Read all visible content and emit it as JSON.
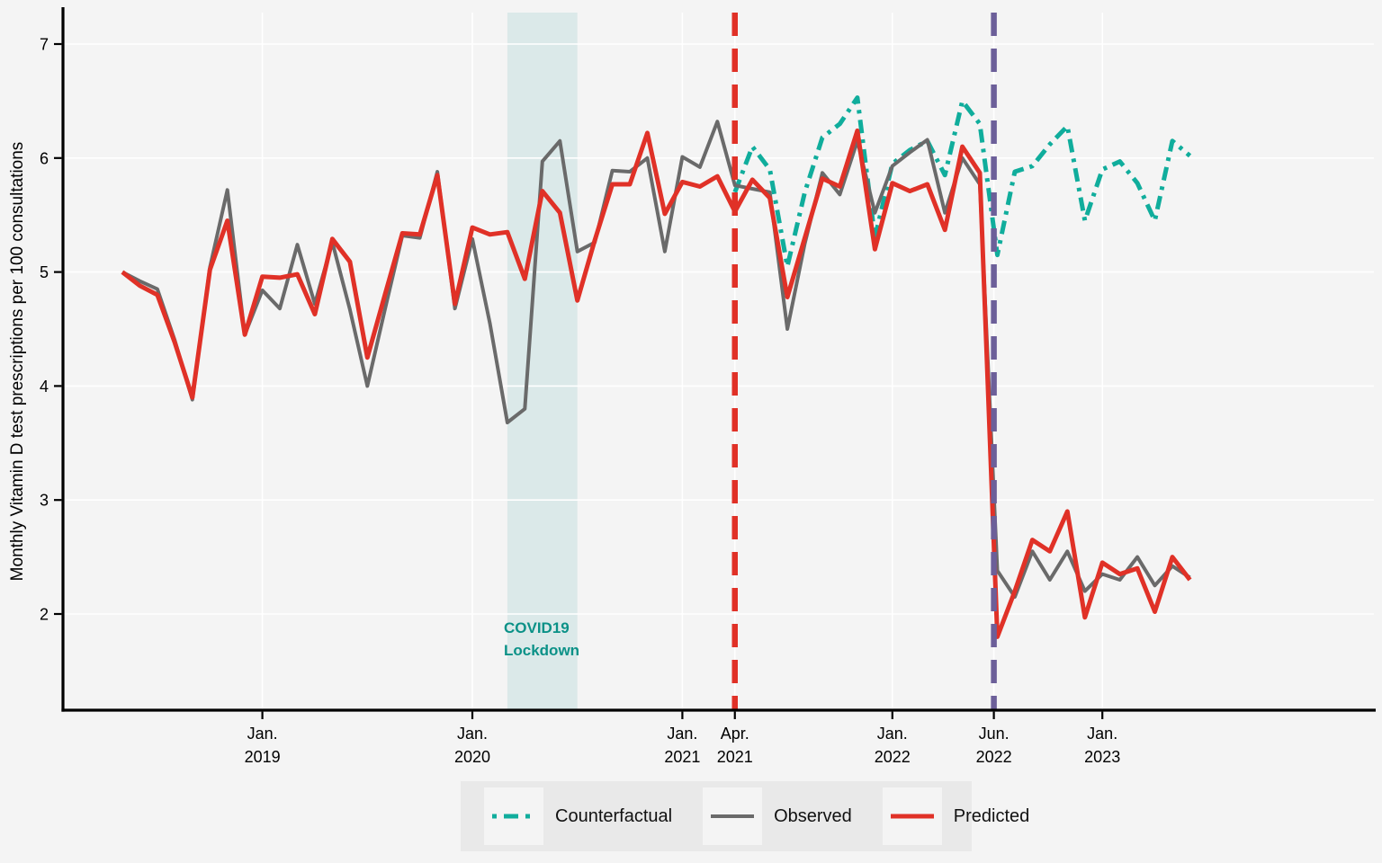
{
  "figure": {
    "background": "#f4f4f4",
    "plot_background": "#f4f4f4",
    "grid_color": "#ffffff",
    "axis_color": "#000000"
  },
  "annotation": {
    "line1": "COVID19",
    "line2": "Lockdown",
    "color": "#0a9187"
  },
  "legend": {
    "items": [
      {
        "label": "Counterfactual",
        "color": "#10ad9c",
        "style": "dash-dot",
        "width": 5
      },
      {
        "label": "Observed",
        "color": "#6a6a6a",
        "style": "solid",
        "width": 4
      },
      {
        "label": "Predicted",
        "color": "#e03127",
        "style": "solid",
        "width": 5
      }
    ]
  },
  "chart_data": {
    "type": "line",
    "title": "",
    "xlabel": "",
    "ylabel": "Monthly Vitamin D test prescriptions per 100 consultations",
    "ylim": [
      1.15,
      7.3
    ],
    "y_ticks": [
      2,
      3,
      4,
      5,
      6,
      7
    ],
    "grid": true,
    "legend_position": "bottom-center",
    "x": [
      "May 2018",
      "Jun 2018",
      "Jul 2018",
      "Aug 2018",
      "Sep 2018",
      "Oct 2018",
      "Nov 2018",
      "Dec 2018",
      "Jan 2019",
      "Feb 2019",
      "Mar 2019",
      "Apr 2019",
      "May 2019",
      "Jun 2019",
      "Jul 2019",
      "Aug 2019",
      "Sep 2019",
      "Oct 2019",
      "Nov 2019",
      "Dec 2019",
      "Jan 2020",
      "Feb 2020",
      "Mar 2020",
      "Apr 2020",
      "May 2020",
      "Jun 2020",
      "Jul 2020",
      "Aug 2020",
      "Sep 2020",
      "Oct 2020",
      "Nov 2020",
      "Dec 2020",
      "Jan 2021",
      "Feb 2021",
      "Mar 2021",
      "Apr 2021",
      "May 2021",
      "Jun 2021",
      "Jul 2021",
      "Aug 2021",
      "Sep 2021",
      "Oct 2021",
      "Nov 2021",
      "Dec 2021",
      "Jan 2022",
      "Feb 2022",
      "Mar 2022",
      "Apr 2022",
      "May 2022",
      "Jun 2022",
      "Jul 2022",
      "Aug 2022",
      "Sep 2022",
      "Oct 2022",
      "Nov 2022",
      "Dec 2022",
      "Jan 2023",
      "Feb 2023",
      "Mar 2023",
      "Apr 2023",
      "May 2023",
      "Jun 2023"
    ],
    "x_ticks": [
      {
        "index": 8,
        "line1": "Jan.",
        "line2": "2019"
      },
      {
        "index": 20,
        "line1": "Jan.",
        "line2": "2020"
      },
      {
        "index": 32,
        "line1": "Jan.",
        "line2": "2021"
      },
      {
        "index": 35,
        "line1": "Apr.",
        "line2": "2021"
      },
      {
        "index": 44,
        "line1": "Jan.",
        "line2": "2022"
      },
      {
        "index": 49.8,
        "line1": "Jun.",
        "line2": "2022"
      },
      {
        "index": 56,
        "line1": "Jan.",
        "line2": "2023"
      }
    ],
    "band": {
      "from_index": 22,
      "to_index": 26,
      "fill": "#dbe9e9",
      "label": "COVID19 Lockdown"
    },
    "vlines": [
      {
        "index": 35,
        "color": "#e03127"
      },
      {
        "index": 49.8,
        "color": "#6c5f99"
      }
    ],
    "series": [
      {
        "name": "Counterfactual",
        "color": "#10ad9c",
        "style": "dash-dot",
        "width": 5,
        "values": [
          null,
          null,
          null,
          null,
          null,
          null,
          null,
          null,
          null,
          null,
          null,
          null,
          null,
          null,
          null,
          null,
          null,
          null,
          null,
          null,
          null,
          null,
          null,
          null,
          null,
          null,
          null,
          null,
          null,
          null,
          null,
          null,
          null,
          null,
          null,
          5.7,
          6.1,
          5.9,
          5.05,
          5.7,
          6.18,
          6.3,
          6.53,
          5.3,
          5.95,
          6.07,
          6.15,
          5.85,
          6.5,
          6.3,
          5.15,
          5.88,
          5.93,
          6.12,
          6.28,
          5.45,
          5.9,
          5.97,
          5.78,
          5.45,
          6.15,
          6.02
        ]
      },
      {
        "name": "Observed",
        "color": "#6a6a6a",
        "style": "solid",
        "width": 4,
        "values": [
          5.0,
          4.92,
          4.85,
          4.4,
          3.88,
          5.04,
          5.72,
          4.45,
          4.84,
          4.68,
          5.24,
          4.72,
          5.26,
          4.67,
          4.0,
          4.67,
          5.32,
          5.3,
          5.88,
          4.68,
          5.29,
          4.55,
          3.68,
          3.8,
          5.97,
          6.15,
          5.18,
          5.26,
          5.89,
          5.88,
          6.0,
          5.18,
          6.01,
          5.92,
          6.32,
          5.76,
          5.73,
          5.7,
          4.5,
          5.25,
          5.87,
          5.68,
          6.15,
          5.52,
          5.93,
          6.05,
          6.16,
          5.52,
          6.0,
          5.77,
          2.38,
          2.15,
          2.55,
          2.3,
          2.55,
          2.2,
          2.35,
          2.3,
          2.5,
          2.25,
          2.42,
          2.32
        ]
      },
      {
        "name": "Predicted",
        "color": "#e03127",
        "style": "solid",
        "width": 5,
        "values": [
          5.0,
          4.88,
          4.8,
          4.38,
          3.9,
          5.02,
          5.45,
          4.45,
          4.96,
          4.95,
          4.98,
          4.63,
          5.29,
          5.09,
          4.25,
          4.8,
          5.34,
          5.33,
          5.85,
          4.72,
          5.39,
          5.33,
          5.35,
          4.94,
          5.71,
          5.52,
          4.75,
          5.28,
          5.77,
          5.77,
          6.22,
          5.51,
          5.79,
          5.75,
          5.84,
          5.53,
          5.81,
          5.65,
          4.78,
          5.3,
          5.82,
          5.75,
          6.24,
          5.2,
          5.78,
          5.71,
          5.77,
          5.37,
          6.1,
          5.87,
          1.8,
          2.2,
          2.65,
          2.55,
          2.9,
          1.97,
          2.45,
          2.35,
          2.4,
          2.02,
          2.5,
          2.3
        ]
      }
    ]
  }
}
